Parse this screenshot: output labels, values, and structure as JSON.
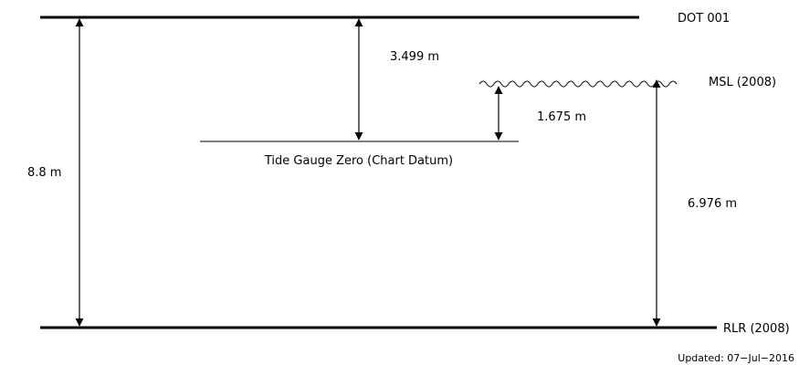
{
  "levels": {
    "dot": "DOT 001",
    "msl": "MSL (2008)",
    "rlr": "RLR (2008)",
    "tide_gauge_zero": "Tide Gauge Zero (Chart Datum)"
  },
  "measurements": {
    "dot_to_rlr": "8.8 m",
    "dot_to_tgz": "3.499 m",
    "msl_to_tgz": "1.675 m",
    "msl_to_rlr": "6.976 m"
  },
  "footer": {
    "updated": "Updated: 07−Jul−2016"
  }
}
